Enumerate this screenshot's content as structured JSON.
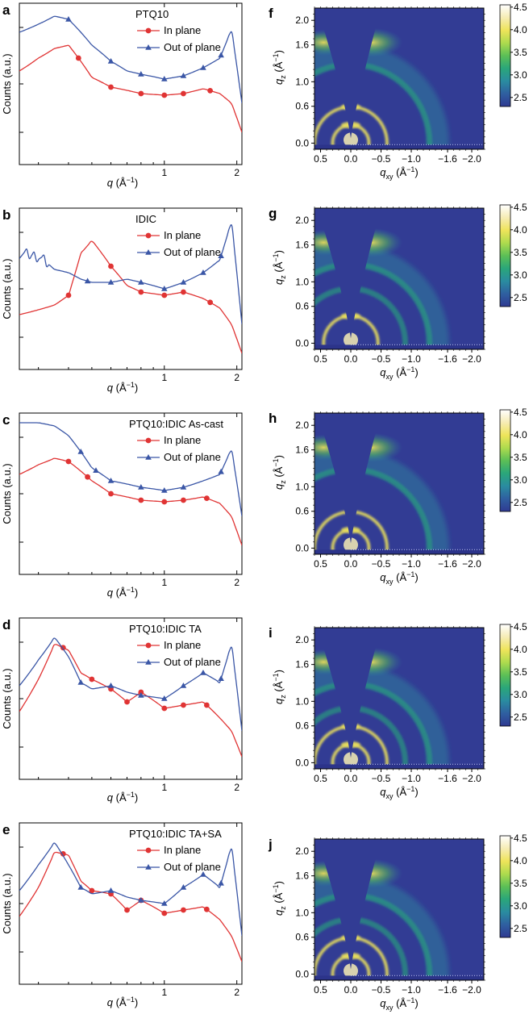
{
  "colors": {
    "in_plane": "#e03434",
    "out_of_plane": "#3a56a6",
    "map_background": "#323c94"
  },
  "colormap": [
    "#2f3a92",
    "#2f5fa0",
    "#2a8ca0",
    "#2aa67a",
    "#5cbf56",
    "#aedb4e",
    "#eee45a",
    "#f6ecb4",
    "#ffffff"
  ],
  "chart_data": [
    {
      "type": "line",
      "panel": "a",
      "title": "PTQ10",
      "xlabel": "q (Å⁻¹)",
      "ylabel": "Counts (a.u.)",
      "xscale": "log",
      "yscale": "log",
      "xlim": [
        0.25,
        2.1
      ],
      "ylim": [
        0,
        100
      ],
      "xticks": [
        1,
        2
      ],
      "xticklabels": [
        "1",
        "2"
      ],
      "yticklabels": [],
      "legend": [
        "In plane",
        "Out of plane"
      ],
      "series": [
        {
          "name": "In plane",
          "x": [
            0.25,
            0.3,
            0.35,
            0.4,
            0.45,
            0.5,
            0.6,
            0.7,
            0.8,
            1.0,
            1.2,
            1.45,
            1.7,
            1.9,
            2.1
          ],
          "y": [
            58,
            66,
            72,
            74,
            64,
            54,
            48,
            46,
            44,
            43,
            44,
            47,
            44,
            38,
            20
          ],
          "markers_x": [
            0.44,
            0.6,
            0.8,
            1.0,
            1.2,
            1.55
          ]
        },
        {
          "name": "Out of plane",
          "x": [
            0.25,
            0.3,
            0.35,
            0.4,
            0.45,
            0.5,
            0.6,
            0.7,
            0.8,
            1.0,
            1.2,
            1.45,
            1.7,
            1.9,
            2.1
          ],
          "y": [
            82,
            87,
            92,
            90,
            82,
            74,
            64,
            58,
            56,
            53,
            55,
            60,
            66,
            84,
            38
          ],
          "markers_x": [
            0.4,
            0.6,
            0.8,
            1.0,
            1.2,
            1.45,
            1.72
          ]
        }
      ]
    },
    {
      "type": "line",
      "panel": "b",
      "title": "IDIC",
      "xlabel": "q (Å⁻¹)",
      "ylabel": "Counts (a.u.)",
      "xscale": "log",
      "yscale": "log",
      "xlim": [
        0.25,
        2.1
      ],
      "ylim": [
        0,
        100
      ],
      "xticks": [
        1,
        2
      ],
      "xticklabels": [
        "1",
        "2"
      ],
      "yticklabels": [],
      "legend": [
        "In plane",
        "Out of plane"
      ],
      "series": [
        {
          "name": "In plane",
          "x": [
            0.25,
            0.3,
            0.35,
            0.4,
            0.45,
            0.5,
            0.6,
            0.7,
            0.8,
            1.0,
            1.2,
            1.45,
            1.7,
            1.9,
            2.1
          ],
          "y": [
            34,
            37,
            40,
            46,
            72,
            80,
            64,
            52,
            48,
            46,
            48,
            44,
            38,
            28,
            10
          ],
          "markers_x": [
            0.4,
            0.6,
            0.8,
            1.0,
            1.2,
            1.55
          ]
        },
        {
          "name": "Out of plane",
          "x": [
            0.25,
            0.3,
            0.35,
            0.4,
            0.45,
            0.5,
            0.6,
            0.7,
            0.8,
            1.0,
            1.2,
            1.45,
            1.7,
            1.9,
            2.1
          ],
          "y": [
            72,
            70,
            62,
            60,
            56,
            54,
            54,
            56,
            54,
            50,
            54,
            60,
            68,
            92,
            28
          ],
          "markers_x": [
            0.48,
            0.6,
            0.8,
            1.0,
            1.2,
            1.45,
            1.72
          ]
        }
      ]
    },
    {
      "type": "line",
      "panel": "c",
      "title": "PTQ10:IDIC As-cast",
      "xlabel": "q (Å⁻¹)",
      "ylabel": "Counts (a.u.)",
      "xscale": "log",
      "yscale": "log",
      "xlim": [
        0.25,
        2.1
      ],
      "ylim": [
        0,
        100
      ],
      "xticks": [
        1,
        2
      ],
      "xticklabels": [
        "1",
        "2"
      ],
      "yticklabels": [],
      "legend": [
        "In plane",
        "Out of plane"
      ],
      "series": [
        {
          "name": "In plane",
          "x": [
            0.25,
            0.3,
            0.35,
            0.4,
            0.45,
            0.5,
            0.6,
            0.7,
            0.8,
            1.0,
            1.2,
            1.45,
            1.7,
            1.9,
            2.1
          ],
          "y": [
            62,
            68,
            72,
            70,
            64,
            58,
            50,
            48,
            46,
            45,
            46,
            48,
            44,
            36,
            18
          ],
          "markers_x": [
            0.4,
            0.48,
            0.6,
            0.8,
            1.0,
            1.2,
            1.5
          ]
        },
        {
          "name": "Out of plane",
          "x": [
            0.25,
            0.3,
            0.35,
            0.4,
            0.45,
            0.5,
            0.6,
            0.7,
            0.8,
            1.0,
            1.2,
            1.45,
            1.7,
            1.9,
            2.1
          ],
          "y": [
            94,
            94,
            92,
            86,
            76,
            66,
            58,
            56,
            54,
            52,
            54,
            58,
            62,
            78,
            36
          ],
          "markers_x": [
            0.45,
            0.52,
            0.6,
            0.8,
            1.0,
            1.2,
            1.72
          ]
        }
      ]
    },
    {
      "type": "line",
      "panel": "d",
      "title": "PTQ10:IDIC TA",
      "xlabel": "q (Å⁻¹)",
      "ylabel": "Counts (a.u.)",
      "xscale": "log",
      "yscale": "log",
      "xlim": [
        0.25,
        2.1
      ],
      "ylim": [
        0,
        100
      ],
      "xticks": [
        1,
        2
      ],
      "xticklabels": [
        "1",
        "2"
      ],
      "yticklabels": [],
      "legend": [
        "In plane",
        "Out of plane"
      ],
      "series": [
        {
          "name": "In plane",
          "x": [
            0.25,
            0.3,
            0.35,
            0.4,
            0.45,
            0.5,
            0.6,
            0.7,
            0.8,
            1.0,
            1.2,
            1.45,
            1.7,
            1.9,
            2.1
          ],
          "y": [
            42,
            62,
            84,
            80,
            66,
            62,
            56,
            48,
            54,
            44,
            46,
            48,
            38,
            30,
            14
          ],
          "markers_x": [
            0.38,
            0.5,
            0.6,
            0.7,
            0.8,
            1.0,
            1.2,
            1.5
          ]
        },
        {
          "name": "Out of plane",
          "x": [
            0.25,
            0.3,
            0.35,
            0.4,
            0.45,
            0.5,
            0.6,
            0.7,
            0.8,
            1.0,
            1.2,
            1.45,
            1.7,
            1.9,
            2.1
          ],
          "y": [
            58,
            74,
            88,
            76,
            60,
            56,
            58,
            54,
            52,
            50,
            58,
            66,
            60,
            84,
            30
          ],
          "markers_x": [
            0.45,
            0.6,
            0.8,
            1.0,
            1.2,
            1.45,
            1.72
          ]
        }
      ]
    },
    {
      "type": "line",
      "panel": "e",
      "title": "PTQ10:IDIC TA+SA",
      "xlabel": "q (Å⁻¹)",
      "ylabel": "Counts (a.u.)",
      "xscale": "log",
      "yscale": "log",
      "xlim": [
        0.25,
        2.1
      ],
      "ylim": [
        0,
        100
      ],
      "xticks": [
        1,
        2
      ],
      "xticklabels": [
        "1",
        "2"
      ],
      "yticklabels": [],
      "legend": [
        "In plane",
        "Out of plane"
      ],
      "series": [
        {
          "name": "In plane",
          "x": [
            0.25,
            0.3,
            0.35,
            0.4,
            0.45,
            0.5,
            0.6,
            0.7,
            0.8,
            1.0,
            1.2,
            1.45,
            1.7,
            1.9,
            2.1
          ],
          "y": [
            42,
            60,
            82,
            80,
            64,
            58,
            56,
            46,
            52,
            44,
            46,
            48,
            40,
            30,
            14
          ],
          "markers_x": [
            0.38,
            0.5,
            0.6,
            0.7,
            0.8,
            1.0,
            1.2,
            1.5
          ]
        },
        {
          "name": "Out of plane",
          "x": [
            0.25,
            0.3,
            0.35,
            0.4,
            0.45,
            0.5,
            0.6,
            0.7,
            0.8,
            1.0,
            1.2,
            1.45,
            1.7,
            1.9,
            2.1
          ],
          "y": [
            58,
            74,
            88,
            74,
            60,
            56,
            58,
            54,
            52,
            50,
            60,
            68,
            60,
            86,
            30
          ],
          "markers_x": [
            0.45,
            0.6,
            0.8,
            1.0,
            1.2,
            1.45,
            1.72
          ]
        }
      ]
    },
    {
      "type": "heatmap",
      "panel": "f",
      "xlabel": "q_xy (Å⁻¹)",
      "ylabel": "q_z (Å⁻¹)",
      "xlim": [
        0.6,
        -2.2
      ],
      "ylim": [
        -0.1,
        2.2
      ],
      "xticklabels": [
        "0.5",
        "0.0",
        "−0.5",
        "−1.0",
        "−1.6",
        "−2.0"
      ],
      "xticks": [
        0.5,
        0.0,
        -0.5,
        -1.0,
        -1.6,
        -2.0
      ],
      "yticklabels": [
        "0.0",
        "0.6",
        "1.0",
        "1.6",
        "2.0"
      ],
      "yticks": [
        0.0,
        0.6,
        1.0,
        1.6,
        2.0
      ],
      "colorbar": {
        "range": [
          2.3,
          4.55
        ],
        "ticks": [
          2.5,
          3.0,
          3.5,
          4.0,
          4.5
        ],
        "ticklabels": [
          "2.5",
          "3.0",
          "3.5",
          "4.0",
          "4.5"
        ]
      },
      "rings_q": [
        0.3,
        0.6,
        1.3
      ],
      "lamellar_peaks_qz": [
        0.3,
        0.6
      ],
      "pi_stacking_arc_q": 1.75
    },
    {
      "type": "heatmap",
      "panel": "g",
      "xlabel": "q_xy (Å⁻¹)",
      "ylabel": "q_z (Å⁻¹)",
      "xlim": [
        0.6,
        -2.2
      ],
      "ylim": [
        -0.1,
        2.2
      ],
      "xticklabels": [
        "0.5",
        "0.0",
        "−0.5",
        "−1.0",
        "−1.6",
        "−2.0"
      ],
      "xticks": [
        0.5,
        0.0,
        -0.5,
        -1.0,
        -1.6,
        -2.0
      ],
      "yticklabels": [
        "0.0",
        "0.6",
        "1.0",
        "1.6",
        "2.0"
      ],
      "yticks": [
        0.0,
        0.6,
        1.0,
        1.6,
        2.0
      ],
      "colorbar": {
        "range": [
          2.3,
          4.55
        ],
        "ticks": [
          2.5,
          3.0,
          3.5,
          4.0,
          4.5
        ],
        "ticklabels": [
          "2.5",
          "3.0",
          "3.5",
          "4.0",
          "4.5"
        ]
      },
      "rings_q": [
        0.45,
        0.9,
        1.3
      ],
      "lamellar_peaks_qz": [
        0.45
      ],
      "pi_stacking_arc_q": 1.75
    },
    {
      "type": "heatmap",
      "panel": "h",
      "xlabel": "q_xy (Å⁻¹)",
      "ylabel": "q_z (Å⁻¹)",
      "xlim": [
        0.6,
        -2.2
      ],
      "ylim": [
        -0.1,
        2.2
      ],
      "xticklabels": [
        "0.5",
        "0.0",
        "−0.5",
        "−1.0",
        "−1.6",
        "−2.0"
      ],
      "xticks": [
        0.5,
        0.0,
        -0.5,
        -1.0,
        -1.6,
        -2.0
      ],
      "yticklabels": [
        "0.0",
        "0.6",
        "1.0",
        "1.6",
        "2.0"
      ],
      "yticks": [
        0.0,
        0.6,
        1.0,
        1.6,
        2.0
      ],
      "colorbar": {
        "range": [
          2.3,
          4.55
        ],
        "ticks": [
          2.5,
          3.0,
          3.5,
          4.0,
          4.5
        ],
        "ticklabels": [
          "2.5",
          "3.0",
          "3.5",
          "4.0",
          "4.5"
        ]
      },
      "rings_q": [
        0.3,
        0.6,
        1.3
      ],
      "lamellar_peaks_qz": [
        0.3
      ],
      "pi_stacking_arc_q": 1.75
    },
    {
      "type": "heatmap",
      "panel": "i",
      "xlabel": "q_xy (Å⁻¹)",
      "ylabel": "q_z (Å⁻¹)",
      "xlim": [
        0.6,
        -2.2
      ],
      "ylim": [
        -0.1,
        2.2
      ],
      "xticklabels": [
        "0.5",
        "0.0",
        "−0.5",
        "−1.0",
        "−1.6",
        "−2.0"
      ],
      "xticks": [
        0.5,
        0.0,
        -0.5,
        -1.0,
        -1.6,
        -2.0
      ],
      "yticklabels": [
        "0.0",
        "0.6",
        "1.0",
        "1.6",
        "2.0"
      ],
      "yticks": [
        0.0,
        0.6,
        1.0,
        1.6,
        2.0
      ],
      "colorbar": {
        "range": [
          2.3,
          4.55
        ],
        "ticks": [
          2.5,
          3.0,
          3.5,
          4.0,
          4.5
        ],
        "ticklabels": [
          "2.5",
          "3.0",
          "3.5",
          "4.0",
          "4.5"
        ]
      },
      "rings_q": [
        0.3,
        0.6,
        0.9,
        1.3
      ],
      "lamellar_peaks_qz": [
        0.3,
        0.6
      ],
      "pi_stacking_arc_q": 1.75
    },
    {
      "type": "heatmap",
      "panel": "j",
      "xlabel": "q_xy (Å⁻¹)",
      "ylabel": "q_z (Å⁻¹)",
      "xlim": [
        0.6,
        -2.2
      ],
      "ylim": [
        -0.1,
        2.2
      ],
      "xticklabels": [
        "0.5",
        "0.0",
        "−0.5",
        "−1.0",
        "−1.6",
        "−2.0"
      ],
      "xticks": [
        0.5,
        0.0,
        -0.5,
        -1.0,
        -1.6,
        -2.0
      ],
      "yticklabels": [
        "0.0",
        "0.6",
        "1.0",
        "1.6",
        "2.0"
      ],
      "yticks": [
        0.0,
        0.6,
        1.0,
        1.6,
        2.0
      ],
      "colorbar": {
        "range": [
          2.3,
          4.55
        ],
        "ticks": [
          2.5,
          3.0,
          3.5,
          4.0,
          4.5
        ],
        "ticklabels": [
          "2.5",
          "3.0",
          "3.5",
          "4.0",
          "4.5"
        ]
      },
      "rings_q": [
        0.3,
        0.6,
        0.9,
        1.3
      ],
      "lamellar_peaks_qz": [
        0.3,
        0.6
      ],
      "pi_stacking_arc_q": 1.75
    }
  ]
}
